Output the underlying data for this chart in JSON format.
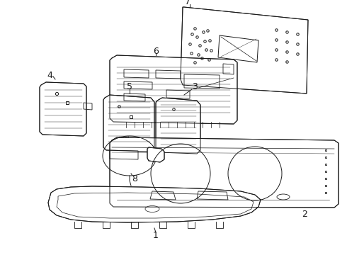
{
  "background_color": "#ffffff",
  "line_color": "#1a1a1a",
  "figsize": [
    4.9,
    3.6
  ],
  "dpi": 100,
  "label_fontsize": 8,
  "lw": 0.7
}
